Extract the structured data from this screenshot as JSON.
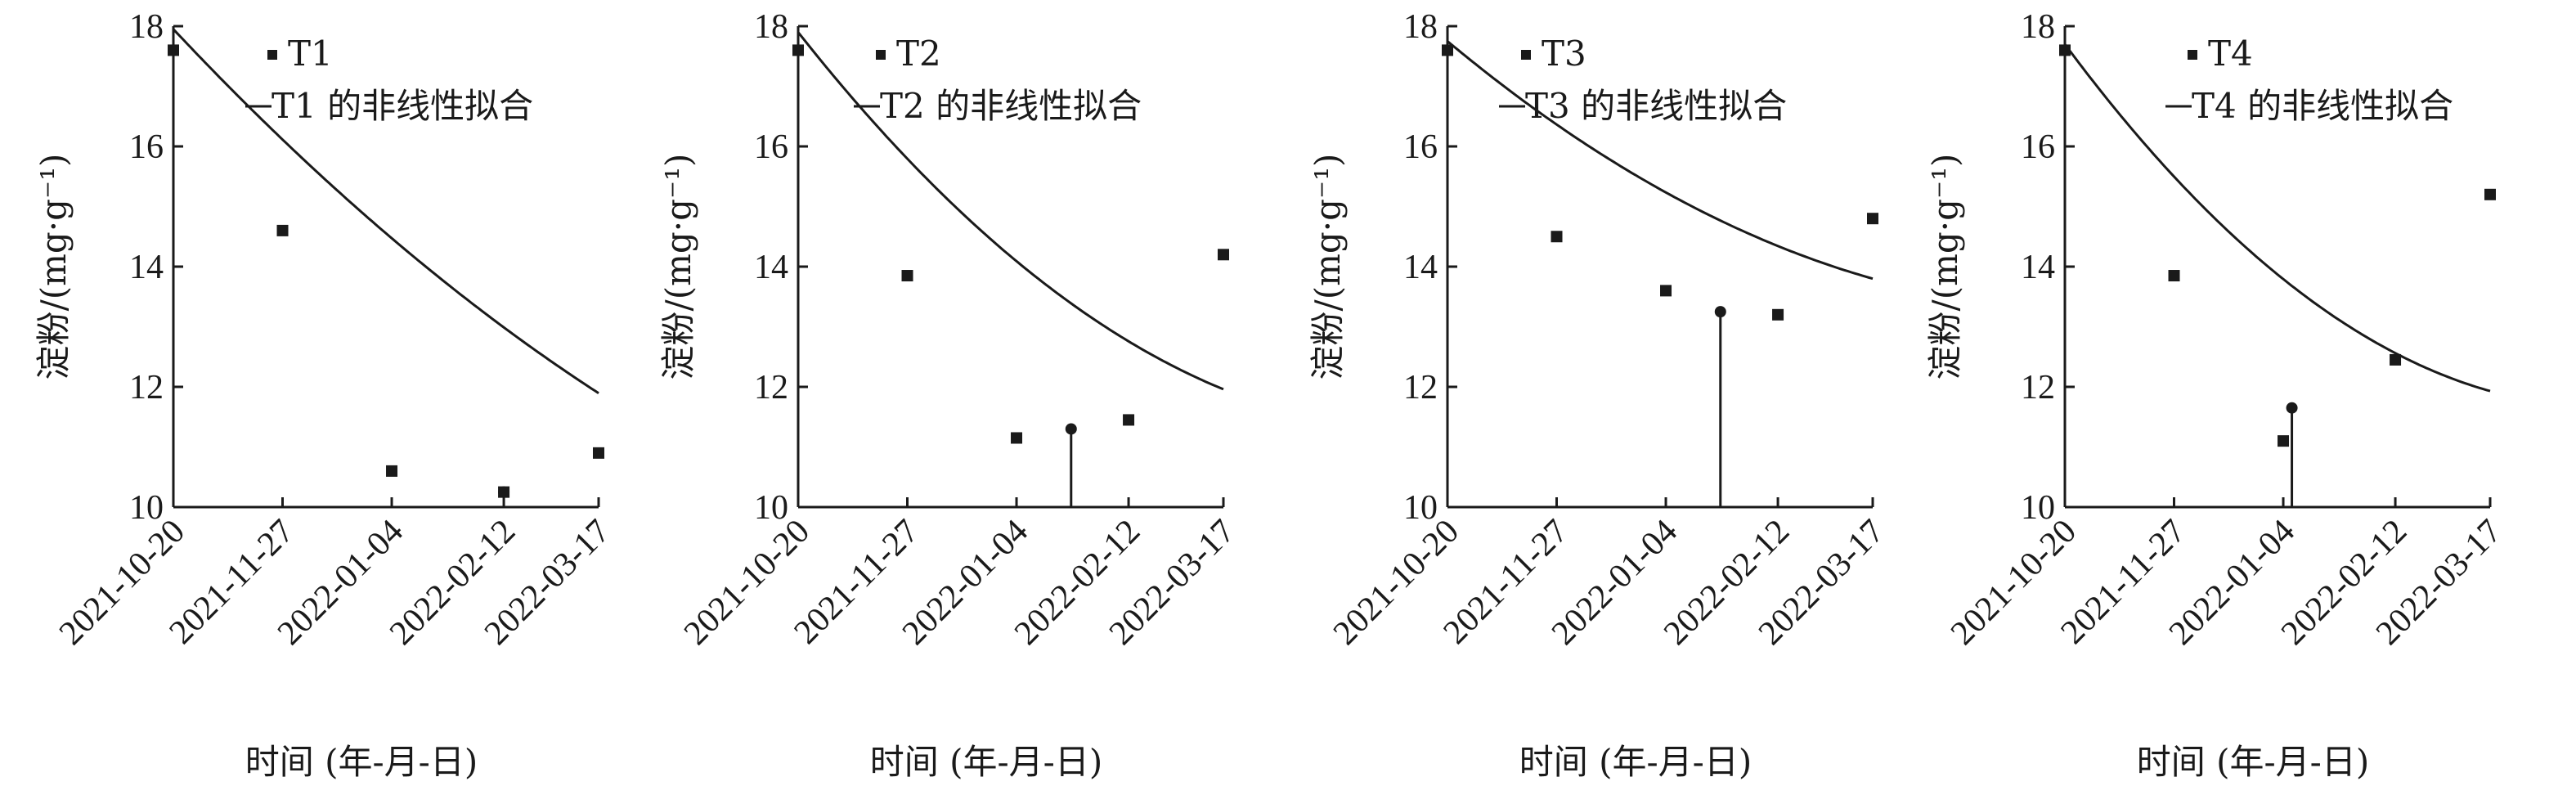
{
  "chart_data": [
    {
      "type": "scatter",
      "panel": "T1",
      "xlabel": "时间 (年-月-日)",
      "ylabel": "淀粉/(mg·g⁻¹)",
      "ylim": [
        10,
        18
      ],
      "yticks": [
        "10",
        "12",
        "14",
        "16",
        "18"
      ],
      "xtick_labels": [
        "2021-10-20",
        "2021-11-27",
        "2022-01-04",
        "2022-02-12",
        "2022-03-17"
      ],
      "series": [
        {
          "name": "T1",
          "x": [
            "2021-10-20",
            "2021-11-27",
            "2022-01-04",
            "2022-02-12",
            "2022-03-17"
          ],
          "values": [
            17.6,
            14.6,
            10.6,
            10.25,
            10.9
          ]
        },
        {
          "name": "T1 的非线性拟合",
          "kind": "fit",
          "coef": [
            17.95,
            -7.53,
            1.475
          ],
          "x_range": [
            "2021-10-20",
            "2022-03-17"
          ]
        }
      ],
      "minimum": {
        "x": "2022-02-12",
        "value": 10.25,
        "drop_line": false
      },
      "legend": "top-center"
    },
    {
      "type": "scatter",
      "panel": "T2",
      "xlabel": "时间 (年-月-日)",
      "ylabel": "淀粉/(mg·g⁻¹)",
      "ylim": [
        10,
        18
      ],
      "yticks": [
        "10",
        "12",
        "14",
        "16",
        "18"
      ],
      "xtick_labels": [
        "2021-10-20",
        "2021-11-27",
        "2022-01-04",
        "2022-02-12",
        "2022-03-17"
      ],
      "series": [
        {
          "name": "T2",
          "x": [
            "2021-10-20",
            "2021-11-27",
            "2022-01-04",
            "2022-02-12",
            "2022-03-17"
          ],
          "values": [
            17.6,
            13.85,
            11.15,
            11.45,
            14.2
          ]
        },
        {
          "name": "T2 的非线性拟合",
          "kind": "fit",
          "coef": [
            17.9,
            -8.98,
            3.04
          ],
          "x_range": [
            "2021-10-20",
            "2022-03-17"
          ]
        }
      ],
      "minimum": {
        "x": "2022-01-23",
        "value": 11.3,
        "drop_line": true
      },
      "legend": "top-center"
    },
    {
      "type": "scatter",
      "panel": "T3",
      "xlabel": "时间 (年-月-日)",
      "ylabel": "淀粉/(mg·g⁻¹)",
      "ylim": [
        10,
        18
      ],
      "yticks": [
        "10",
        "12",
        "14",
        "16",
        "18"
      ],
      "xtick_labels": [
        "2021-10-20",
        "2021-11-27",
        "2022-01-04",
        "2022-02-12",
        "2022-03-17"
      ],
      "series": [
        {
          "name": "T3",
          "x": [
            "2021-10-20",
            "2021-11-27",
            "2022-01-04",
            "2022-02-12",
            "2022-03-17"
          ],
          "values": [
            17.6,
            14.5,
            13.6,
            13.2,
            14.8
          ]
        },
        {
          "name": "T3 的非线性拟合",
          "kind": "fit",
          "coef": [
            17.75,
            -5.9,
            1.95
          ],
          "x_range": [
            "2021-10-20",
            "2022-03-17"
          ]
        }
      ],
      "minimum": {
        "x": "2022-01-23",
        "value": 13.25,
        "drop_line": true
      },
      "legend": "top-center"
    },
    {
      "type": "scatter",
      "panel": "T4",
      "xlabel": "时间 (年-月-日)",
      "ylabel": "淀粉/(mg·g⁻¹)",
      "ylim": [
        10,
        18
      ],
      "yticks": [
        "10",
        "12",
        "14",
        "16",
        "18"
      ],
      "xtick_labels": [
        "2021-10-20",
        "2021-11-27",
        "2022-01-04",
        "2022-02-12",
        "2022-03-17"
      ],
      "series": [
        {
          "name": "T4",
          "x": [
            "2021-10-20",
            "2021-11-27",
            "2022-01-04",
            "2022-02-12",
            "2022-03-17"
          ],
          "values": [
            17.6,
            13.85,
            11.1,
            12.45,
            15.2
          ]
        },
        {
          "name": "T4 的非线性拟合",
          "kind": "fit",
          "coef": [
            17.7,
            -9.55,
            3.78
          ],
          "x_range": [
            "2021-10-20",
            "2022-03-17"
          ]
        }
      ],
      "minimum": {
        "x": "2022-01-07",
        "value": 11.65,
        "drop_line": true
      },
      "legend": "top-center"
    }
  ]
}
